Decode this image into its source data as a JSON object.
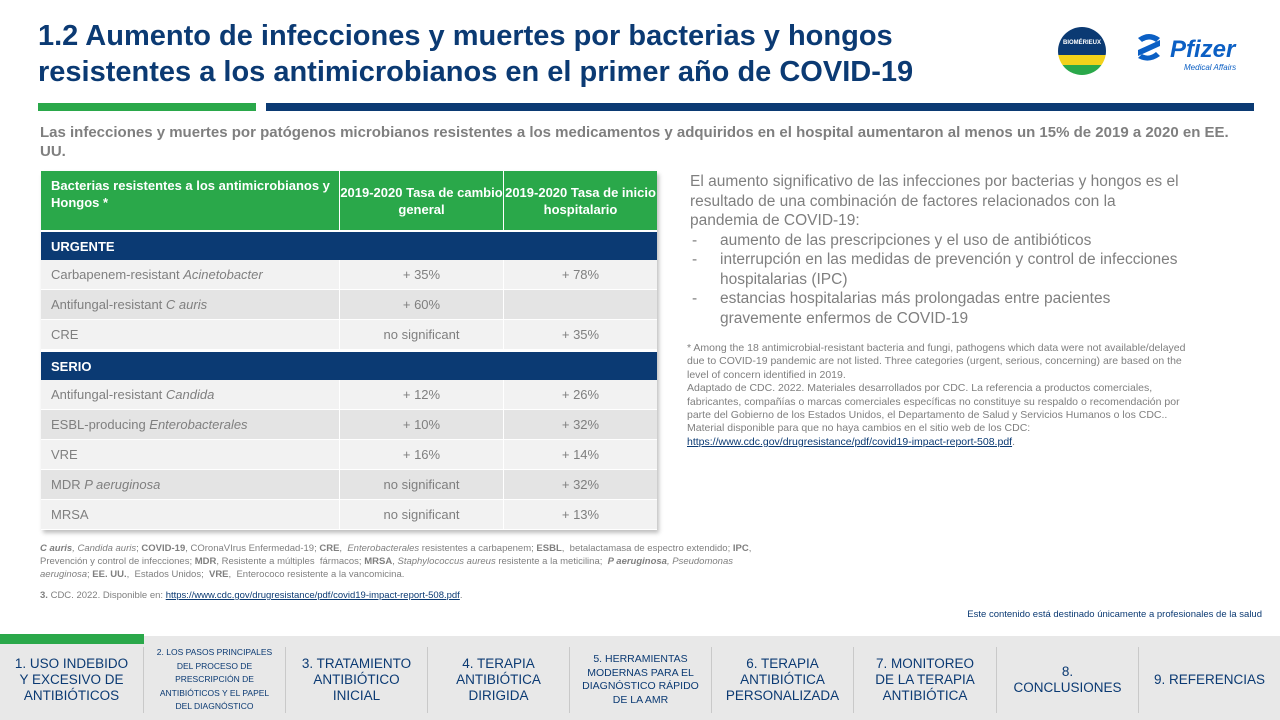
{
  "header": {
    "title": "1.2 Aumento de infecciones y muertes por bacterias y hongos resistentes a los antimicrobianos en el primer año de COVID-19",
    "logo_biomerieux": "BIOMÉRIEUX",
    "logo_pfizer": "Pfizer",
    "logo_pfizer_sub": "Medical Affairs"
  },
  "colors": {
    "primary": "#0b3a73",
    "green": "#2aa84a",
    "text_gray": "#7f7f7f"
  },
  "subtitle": "Las infecciones y muertes por patógenos microbianos resistentes a los medicamentos y adquiridos en el hospital aumentaron al menos un 15% de 2019 a 2020 en EE. UU.",
  "table": {
    "headers": [
      "Bacterias resistentes a los antimicrobianos y Hongos *",
      "2019-2020 Tasa de cambio general",
      "2019-2020 Tasa de inicio hospitalario"
    ],
    "sections": [
      {
        "label": "URGENTE",
        "rows": [
          {
            "name_pre": "Carbapenem-resistant ",
            "name_italic": "Acinetobacter",
            "general": "+ 35%",
            "hospital": "+ 78%"
          },
          {
            "name_pre": "Antifungal-resistant ",
            "name_italic": "C auris",
            "general": "+ 60%",
            "hospital": ""
          },
          {
            "name_pre": "CRE",
            "name_italic": "",
            "general": "no significant",
            "hospital": "+ 35%"
          }
        ]
      },
      {
        "label": "SERIO",
        "rows": [
          {
            "name_pre": "Antifungal-resistant ",
            "name_italic": "Candida",
            "general": "+ 12%",
            "hospital": "+ 26%"
          },
          {
            "name_pre": "ESBL-producing ",
            "name_italic": "Enterobacterales",
            "general": "+ 10%",
            "hospital": "+ 32%"
          },
          {
            "name_pre": "VRE",
            "name_italic": "",
            "general": "+ 16%",
            "hospital": "+ 14%"
          },
          {
            "name_pre": "MDR ",
            "name_italic": "P aeruginosa",
            "general": "no significant",
            "hospital": "+ 32%"
          },
          {
            "name_pre": "MRSA",
            "name_italic": "",
            "general": "no significant",
            "hospital": "+ 13%"
          }
        ]
      }
    ]
  },
  "right": {
    "intro": "El aumento significativo de las infecciones por bacterias y hongos es el resultado de una combinación de factores relacionados con la pandemia de COVID-19:",
    "bullets": [
      "aumento de las prescripciones y el uso de antibióticos",
      "interrupción en las medidas de prevención y control de infecciones hospitalarias (IPC)",
      "estancias hospitalarias más prolongadas entre pacientes gravemente enfermos de COVID-19"
    ],
    "footnote": "* Among the 18 antimicrobial-resistant bacteria and fungi, pathogens which data were not available/delayed due to COVID-19 pandemic are not listed. Three categories (urgent, serious, concerning) are based on the level of concern identified in 2019.",
    "adapted": "Adaptado de CDC. 2022. Materiales desarrollados por CDC. La referencia a productos comerciales, fabricantes, compañías o marcas comerciales específicas no constituye su respaldo o recomendación por parte del Gobierno de los Estados Unidos, el Departamento de Salud y Servicios Humanos o los CDC.. Material disponible para que no haya cambios en el sitio web de los CDC: ",
    "link": "https://www.cdc.gov/drugresistance/pdf/covid19-impact-report-508.pdf",
    "link_suffix": "."
  },
  "abbreviations": [
    {
      "b": true,
      "i": true,
      "t": "C auris"
    },
    {
      "b": false,
      "i": true,
      "t": ", Candida auris"
    },
    {
      "b": false,
      "i": false,
      "t": "; "
    },
    {
      "b": true,
      "i": false,
      "t": "COVID-19"
    },
    {
      "b": false,
      "i": false,
      "t": ", COronaVIrus Enfermedad-19; "
    },
    {
      "b": true,
      "i": false,
      "t": "CRE"
    },
    {
      "b": false,
      "i": false,
      "t": ",  "
    },
    {
      "b": false,
      "i": true,
      "t": "Enterobacterales"
    },
    {
      "b": false,
      "i": false,
      "t": " resistentes a carbapenem; "
    },
    {
      "b": true,
      "i": false,
      "t": "ESBL"
    },
    {
      "b": false,
      "i": false,
      "t": ",  betalactamasa de espectro extendido; "
    },
    {
      "b": true,
      "i": false,
      "t": "IPC"
    },
    {
      "b": false,
      "i": false,
      "t": ", Prevención y control de infecciones; "
    },
    {
      "b": true,
      "i": false,
      "t": "MDR"
    },
    {
      "b": false,
      "i": false,
      "t": ", Resistente a múltiples  fármacos; "
    },
    {
      "b": true,
      "i": false,
      "t": "MRSA"
    },
    {
      "b": false,
      "i": false,
      "t": ", "
    },
    {
      "b": false,
      "i": true,
      "t": "Staphylococcus aureus"
    },
    {
      "b": false,
      "i": false,
      "t": " resistente a la meticilina;  "
    },
    {
      "b": true,
      "i": true,
      "t": "P aeruginosa"
    },
    {
      "b": false,
      "i": true,
      "t": ", Pseudomonas aeruginosa"
    },
    {
      "b": false,
      "i": false,
      "t": "; "
    },
    {
      "b": true,
      "i": false,
      "t": "EE. UU."
    },
    {
      "b": false,
      "i": false,
      "t": ",  Estados Unidos;  "
    },
    {
      "b": true,
      "i": false,
      "t": "VRE"
    },
    {
      "b": false,
      "i": false,
      "t": ",  Enterococo resistente a la vancomicina."
    }
  ],
  "reference": {
    "num": "3.",
    "text": " CDC.  2022. Disponible en: ",
    "link": "https://www.cdc.gov/drugresistance/pdf/covid19-impact-report-508.pdf",
    "suffix": "."
  },
  "hcp_notice": "Este contenido está destinado únicamente a profesionales de la salud",
  "nav": {
    "items": [
      {
        "label": "1. USO INDEBIDO Y EXCESIVO DE ANTIBIÓTICOS"
      },
      {
        "label": "2. LOS PASOS PRINCIPALES DEL PROCESO DE PRESCRIPCIÓN DE ANTIBIÓTICOS Y EL PAPEL DEL DIAGNÓSTICO"
      },
      {
        "label": "3. TRATAMIENTO ANTIBIÓTICO INICIAL"
      },
      {
        "label": "4. TERAPIA ANTIBIÓTICA DIRIGIDA"
      },
      {
        "label": "5. HERRAMIENTAS MODERNAS PARA EL DIAGNÓSTICO RÁPIDO DE LA AMR"
      },
      {
        "label": "6. TERAPIA ANTIBIÓTICA PERSONALIZADA"
      },
      {
        "label": "7. MONITOREO DE LA TERAPIA ANTIBIÓTICA"
      },
      {
        "label": "8. CONCLUSIONES"
      },
      {
        "label": "9. REFERENCIAS"
      }
    ]
  }
}
